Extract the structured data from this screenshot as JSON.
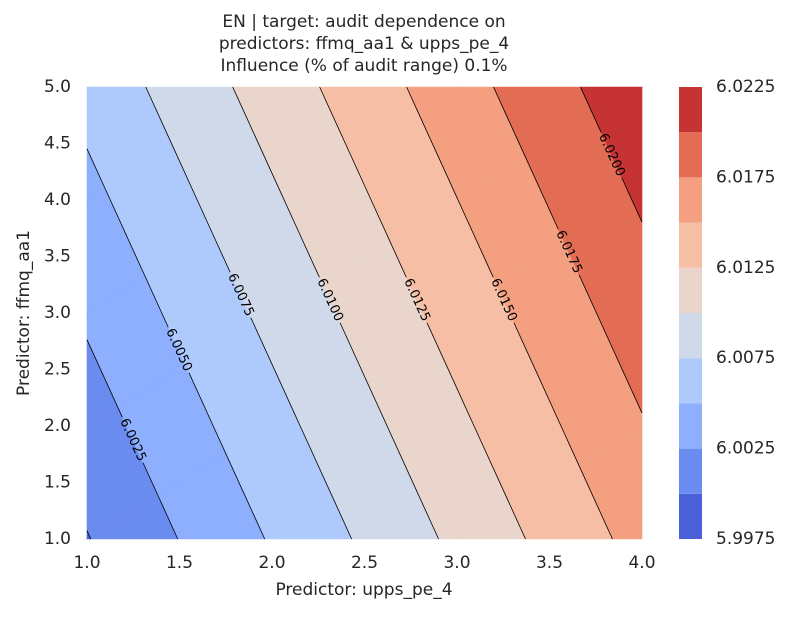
{
  "chart_data": {
    "type": "contour",
    "title": [
      "EN | target: audit dependence on",
      "predictors: ffmq_aa1 & upps_pe_4",
      "Influence (% of audit range) 0.1%"
    ],
    "xlabel": "Predictor: upps_pe_4",
    "ylabel": "Predictor: ffmq_aa1",
    "x": [
      1,
      2,
      3,
      4
    ],
    "y": [
      1,
      2,
      3,
      4,
      5
    ],
    "z": [
      [
        5.99989,
        6.00521,
        6.01053,
        6.01585
      ],
      [
        6.00137,
        6.00669,
        6.01201,
        6.01733
      ],
      [
        6.00285,
        6.00817,
        6.01349,
        6.01881
      ],
      [
        6.00433,
        6.00965,
        6.01497,
        6.02029
      ],
      [
        6.00581,
        6.01113,
        6.01645,
        6.02177
      ]
    ],
    "xlim": [
      1,
      4
    ],
    "ylim": [
      1,
      5
    ],
    "xticks": [
      {
        "value": 1,
        "label": "1.0"
      },
      {
        "value": 1.5,
        "label": "1.5"
      },
      {
        "value": 2,
        "label": "2.0"
      },
      {
        "value": 2.5,
        "label": "2.5"
      },
      {
        "value": 3,
        "label": "3.0"
      },
      {
        "value": 3.5,
        "label": "3.5"
      },
      {
        "value": 4,
        "label": "4.0"
      }
    ],
    "yticks": [
      {
        "value": 1,
        "label": "1.0"
      },
      {
        "value": 1.5,
        "label": "1.5"
      },
      {
        "value": 2,
        "label": "2.0"
      },
      {
        "value": 2.5,
        "label": "2.5"
      },
      {
        "value": 3,
        "label": "3.0"
      },
      {
        "value": 3.5,
        "label": "3.5"
      },
      {
        "value": 4,
        "label": "4.0"
      },
      {
        "value": 4.5,
        "label": "4.5"
      },
      {
        "value": 5,
        "label": "5.0"
      }
    ],
    "levels": [
      5.9975,
      6.0,
      6.0025,
      6.005,
      6.0075,
      6.01,
      6.0125,
      6.015,
      6.0175,
      6.02,
      6.0225
    ],
    "colors": [
      "#4b5fd6",
      "#6a8bef",
      "#8daffd",
      "#aec9fc",
      "#cfd9ea",
      "#e9d5cb",
      "#f6bfa5",
      "#f39f80",
      "#e36c55",
      "#c53334"
    ],
    "line_levels": [
      6.0,
      6.0025,
      6.005,
      6.0075,
      6.01,
      6.0125,
      6.015,
      6.0175,
      6.02
    ],
    "line_labels": [
      null,
      "6.0025",
      "6.0050",
      "6.0075",
      "6.0100",
      "6.0125",
      "6.0150",
      "6.0175",
      "6.0200"
    ],
    "cbar_ticks": [
      5.9975,
      6.0025,
      6.0075,
      6.0125,
      6.0175,
      6.0225
    ]
  }
}
